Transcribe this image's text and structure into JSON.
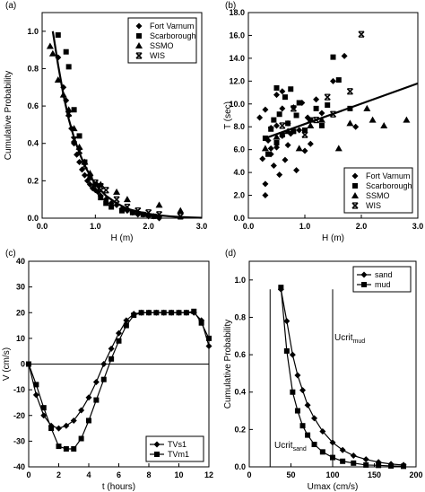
{
  "chart_data": [
    {
      "panel_label": "(a)",
      "type": "scatter",
      "xlabel": "H (m)",
      "ylabel": "Cumulative Probability",
      "xlim": [
        0,
        3.0
      ],
      "ylim": [
        0,
        1.1
      ],
      "x_ticks": [
        "0.0",
        "1.0",
        "2.0",
        "3.0"
      ],
      "y_ticks": [
        "0.0",
        "0.2",
        "0.4",
        "0.6",
        "0.8",
        "1.0"
      ],
      "legend": {
        "position": "top-right",
        "entries": [
          "Fort Varnum",
          "Scarborough",
          "SSMO",
          "WIS"
        ]
      },
      "series": [
        {
          "name": "Fort Varnum",
          "marker": "diamond",
          "x": [
            0.3,
            0.4,
            0.45,
            0.5,
            0.55,
            0.6,
            0.65,
            0.7,
            0.75,
            0.8,
            0.85,
            0.9,
            0.95,
            1.0,
            1.05,
            1.1,
            1.2,
            1.3,
            1.4,
            1.5,
            1.6,
            1.7,
            1.8,
            1.9,
            2.0,
            2.1,
            2.2
          ],
          "y": [
            0.86,
            0.7,
            0.63,
            0.55,
            0.48,
            0.4,
            0.34,
            0.3,
            0.26,
            0.23,
            0.2,
            0.18,
            0.16,
            0.15,
            0.14,
            0.12,
            0.1,
            0.08,
            0.07,
            0.05,
            0.04,
            0.03,
            0.02,
            0.02,
            0.01,
            0.01,
            0.0
          ]
        },
        {
          "name": "Scarborough",
          "marker": "square",
          "x": [
            0.3,
            0.45,
            0.5,
            0.6,
            0.7,
            0.8,
            0.9,
            1.0,
            1.1,
            1.2,
            1.3,
            1.5,
            1.7,
            1.9,
            2.1
          ],
          "y": [
            0.98,
            0.89,
            0.81,
            0.58,
            0.44,
            0.3,
            0.22,
            0.18,
            0.11,
            0.08,
            0.06,
            0.04,
            0.03,
            0.02,
            0.01
          ]
        },
        {
          "name": "SSMO",
          "marker": "triangle",
          "x": [
            0.15,
            0.2,
            0.3,
            0.4,
            0.5,
            0.6,
            0.7,
            0.8,
            0.9,
            1.1,
            1.4,
            1.6,
            2.2,
            2.6
          ],
          "y": [
            0.92,
            0.88,
            0.74,
            0.66,
            0.58,
            0.48,
            0.38,
            0.3,
            0.24,
            0.18,
            0.14,
            0.1,
            0.07,
            0.04
          ]
        },
        {
          "name": "WIS",
          "marker": "x",
          "x": [
            0.5,
            0.6,
            0.7,
            0.8,
            0.9,
            1.0,
            1.1,
            1.2,
            1.4,
            1.6,
            1.8,
            2.0,
            2.2,
            2.6
          ],
          "y": [
            0.56,
            0.42,
            0.36,
            0.28,
            0.22,
            0.19,
            0.17,
            0.15,
            0.1,
            0.06,
            0.04,
            0.03,
            0.02,
            0.01
          ]
        },
        {
          "name": "",
          "marker": "line",
          "x": [
            0.2,
            0.3,
            0.4,
            0.5,
            0.6,
            0.7,
            0.8,
            0.9,
            1.0,
            1.2,
            1.4,
            1.6,
            1.8,
            2.0,
            2.2,
            2.4,
            2.6,
            2.8,
            3.0
          ],
          "y": [
            1.0,
            0.82,
            0.66,
            0.53,
            0.43,
            0.35,
            0.28,
            0.23,
            0.18,
            0.12,
            0.08,
            0.05,
            0.035,
            0.023,
            0.015,
            0.01,
            0.006,
            0.004,
            0.002
          ]
        }
      ]
    },
    {
      "panel_label": "(b)",
      "type": "scatter",
      "xlabel": "H (m)",
      "ylabel": "T (sec)",
      "xlim": [
        0,
        3.0
      ],
      "ylim": [
        0,
        18
      ],
      "x_ticks": [
        "0.0",
        "1.0",
        "2.0",
        "3.0"
      ],
      "y_ticks": [
        "0.0",
        "2.0",
        "4.0",
        "6.0",
        "8.0",
        "10.0",
        "12.0",
        "14.0",
        "16.0",
        "18.0"
      ],
      "legend": {
        "position": "bottom-right",
        "entries": [
          "Fort Varnum",
          "Scarborough",
          "SSMO",
          "WIS"
        ]
      },
      "series": [
        {
          "name": "Fort Varnum",
          "marker": "diamond",
          "x": [
            0.2,
            0.25,
            0.3,
            0.3,
            0.35,
            0.4,
            0.4,
            0.45,
            0.5,
            0.5,
            0.55,
            0.6,
            0.6,
            0.65,
            0.7,
            0.7,
            0.75,
            0.8,
            0.85,
            0.9,
            0.95,
            1.0,
            1.05,
            1.1,
            1.2,
            1.3,
            1.5,
            1.7,
            1.9,
            0.3,
            0.5,
            0.6,
            0.4
          ],
          "y": [
            8.8,
            5.2,
            3.0,
            2.0,
            6.8,
            7.9,
            5.6,
            4.6,
            6.2,
            8.1,
            3.8,
            7.2,
            9.6,
            5.1,
            8.3,
            6.4,
            7.4,
            9.7,
            4.2,
            7.7,
            10.1,
            5.9,
            8.8,
            6.5,
            10.4,
            9.2,
            12.0,
            14.2,
            8.0,
            9.5,
            10.8,
            11.1,
            6.1
          ]
        },
        {
          "name": "Scarborough",
          "marker": "square",
          "x": [
            0.3,
            0.4,
            0.45,
            0.5,
            0.55,
            0.6,
            0.65,
            0.7,
            0.75,
            0.8,
            0.85,
            0.9,
            1.0,
            1.1,
            1.2,
            1.3,
            1.4,
            1.5,
            1.6,
            1.8,
            0.35,
            0.5
          ],
          "y": [
            7.0,
            7.8,
            8.6,
            6.6,
            9.1,
            7.3,
            10.6,
            8.3,
            11.3,
            7.6,
            9.0,
            10.1,
            7.7,
            8.6,
            9.6,
            8.1,
            9.9,
            14.1,
            12.1,
            9.6,
            5.6,
            11.4
          ]
        },
        {
          "name": "SSMO",
          "marker": "triangle",
          "x": [
            0.3,
            0.5,
            0.7,
            0.9,
            1.1,
            1.3,
            1.6,
            1.8,
            2.1,
            2.2,
            2.4,
            2.8
          ],
          "y": [
            6.1,
            7.1,
            7.6,
            6.1,
            8.1,
            8.6,
            6.1,
            8.3,
            9.6,
            8.6,
            8.1,
            8.6
          ]
        },
        {
          "name": "WIS",
          "marker": "x",
          "x": [
            0.6,
            0.8,
            1.0,
            1.2,
            1.4,
            1.8,
            2.0,
            1.5
          ],
          "y": [
            8.1,
            9.6,
            7.3,
            8.6,
            10.6,
            11.1,
            16.1,
            9.1
          ]
        },
        {
          "name": "",
          "marker": "line",
          "x": [
            0.3,
            3.0
          ],
          "y": [
            7.0,
            11.8
          ]
        }
      ]
    },
    {
      "panel_label": "(c)",
      "type": "line",
      "xlabel": "t (hours)",
      "ylabel": "V (cm/s)",
      "xlim": [
        0,
        12
      ],
      "ylim": [
        -40,
        40
      ],
      "x_ticks": [
        "0",
        "2",
        "4",
        "6",
        "8",
        "10",
        "12"
      ],
      "y_ticks": [
        "-40",
        "-30",
        "-20",
        "-10",
        "0",
        "10",
        "20",
        "30",
        "40"
      ],
      "legend": {
        "position": "bottom-right",
        "entries": [
          "TVs1",
          "TVm1"
        ]
      },
      "series": [
        {
          "name": "TVs1",
          "marker": "diamond",
          "x": [
            0,
            0.5,
            1,
            1.5,
            2,
            2.5,
            3,
            3.5,
            4,
            4.5,
            5,
            5.5,
            6,
            6.5,
            7,
            7.5,
            8,
            8.5,
            9,
            9.5,
            10,
            10.5,
            11,
            11.5,
            12
          ],
          "y": [
            0,
            -12,
            -20,
            -24,
            -25,
            -24,
            -22,
            -18,
            -13,
            -7,
            0,
            6,
            12,
            17,
            19.5,
            20,
            20,
            20,
            20,
            20,
            20,
            20,
            20,
            17,
            7
          ]
        },
        {
          "name": "TVm1",
          "marker": "square",
          "x": [
            0,
            0.5,
            1,
            1.5,
            2,
            2.5,
            3,
            3.5,
            4,
            4.5,
            5,
            5.5,
            6,
            6.5,
            7,
            7.5,
            8,
            8.5,
            9,
            9.5,
            10,
            10.5,
            11,
            11.5,
            12
          ],
          "y": [
            0,
            -8,
            -17,
            -25,
            -32,
            -33,
            -33,
            -29,
            -22,
            -14,
            -6,
            2,
            9,
            15,
            19,
            20,
            20,
            20,
            20,
            20,
            20,
            20,
            20.5,
            16,
            10
          ]
        }
      ]
    },
    {
      "panel_label": "(d)",
      "type": "line",
      "xlabel": "Umax (cm/s)",
      "ylabel": "Cumulative Probability",
      "xlim": [
        0,
        200
      ],
      "ylim": [
        0,
        1.1
      ],
      "x_ticks": [
        "0",
        "50",
        "100",
        "150",
        "200"
      ],
      "y_ticks": [
        "0.0",
        "0.2",
        "0.4",
        "0.6",
        "0.8",
        "1.0"
      ],
      "legend": {
        "position": "top-right",
        "entries": [
          "sand",
          "mud"
        ]
      },
      "annotations": [
        {
          "text": "Ucrit",
          "sub": "mud"
        },
        {
          "text": "Ucrit",
          "sub": "sand"
        }
      ],
      "vlines": [
        25,
        100
      ],
      "series": [
        {
          "name": "sand",
          "marker": "diamond",
          "x": [
            38,
            45,
            52,
            58,
            64,
            70,
            78,
            88,
            100,
            112,
            125,
            140,
            155,
            170,
            185
          ],
          "y": [
            0.95,
            0.78,
            0.6,
            0.49,
            0.41,
            0.33,
            0.26,
            0.19,
            0.13,
            0.09,
            0.06,
            0.04,
            0.025,
            0.015,
            0.01
          ]
        },
        {
          "name": "mud",
          "marker": "square",
          "x": [
            38,
            45,
            52,
            58,
            64,
            70,
            78,
            88,
            100,
            112,
            125,
            140,
            155,
            170,
            185
          ],
          "y": [
            0.96,
            0.62,
            0.4,
            0.3,
            0.22,
            0.17,
            0.12,
            0.08,
            0.05,
            0.03,
            0.02,
            0.01,
            0.008,
            0.005,
            0.003
          ]
        }
      ]
    }
  ]
}
